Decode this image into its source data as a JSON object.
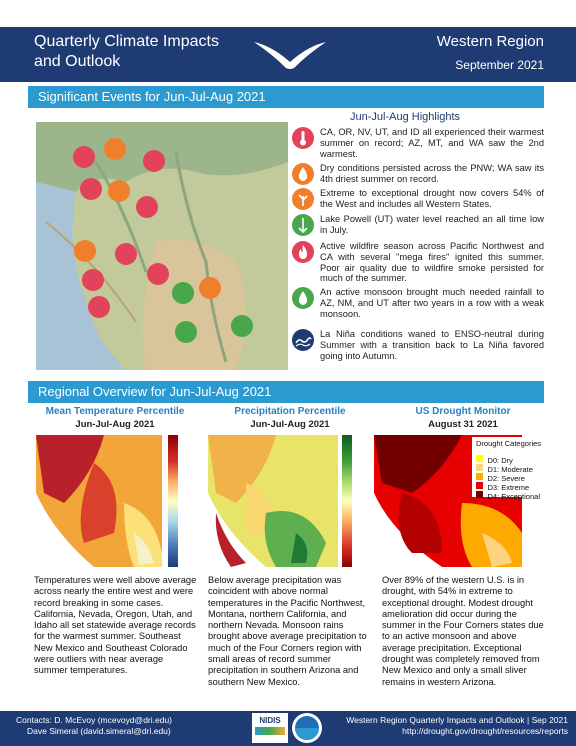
{
  "header": {
    "title_line1": "Quarterly Climate Impacts",
    "title_line2": "and Outlook",
    "region": "Western Region",
    "date": "September 2021"
  },
  "significant_events": {
    "section_title": "Significant Events for Jun-Jul-Aug 2021",
    "highlights_title": "Jun-Jul-Aug Highlights",
    "items": [
      {
        "icon": "thermometer-icon",
        "color": "#e2435a",
        "text": "CA, OR, NV, UT, and ID all experienced their warmest summer on record; AZ, MT, and WA saw the 2nd warmest."
      },
      {
        "icon": "dry-icon",
        "color": "#f07f2c",
        "text": "Dry conditions persisted across the PNW; WA saw its 4th driest summer on record."
      },
      {
        "icon": "drought-icon",
        "color": "#f07f2c",
        "text": "Extreme to exceptional drought now covers 54% of the West and includes all Western States."
      },
      {
        "icon": "water-level-icon",
        "color": "#4aa64a",
        "text": "Lake Powell (UT) water level reached an all time low in July."
      },
      {
        "icon": "fire-icon",
        "color": "#e2435a",
        "text": "Active wildfire season across Pacific Northwest and CA with several \"mega fires\" ignited this summer. Poor air quality due to wildfire smoke persisted for much of the summer."
      },
      {
        "icon": "rain-drop-icon",
        "color": "#4aa64a",
        "text": "An active monsoon brought much needed rainfall to AZ, NM, and UT after two years in a row with a weak monsoon."
      },
      {
        "icon": "wave-icon",
        "color": "#1f3b73",
        "text": "La Niña conditions waned to ENSO-neutral during Summer with a transition back to La Niña favored going into Autumn."
      }
    ]
  },
  "regional_overview": {
    "section_title": "Regional Overview for Jun-Jul-Aug 2021",
    "temperature": {
      "title": "Mean Temperature Percentile",
      "subtitle": "Jun-Jul-Aug 2021",
      "text": "Temperatures were well above average across nearly the entire west and were record breaking in some cases. California, Nevada, Oregon, Utah, and Idaho all set statewide average records for the warmest summer. Southeast New Mexico and Southeast Colorado were outliers with near average summer temperatures."
    },
    "precipitation": {
      "title": "Precipitation Percentile",
      "subtitle": "Jun-Jul-Aug 2021",
      "text": "Below average precipitation was coincident with above normal temperatures in the Pacific Northwest, Montana, northern California, and northern Nevada. Monsoon rains brought above average precipitation to much of the Four Corners region with small areas of record summer precipitation in southern Arizona and southern New Mexico."
    },
    "drought": {
      "title": "US Drought Monitor",
      "subtitle": "August 31 2021",
      "legend_title": "Drought Categories",
      "legend": [
        {
          "label": "D0: Dry",
          "color": "#ffff00"
        },
        {
          "label": "D1: Moderate",
          "color": "#fcd37f"
        },
        {
          "label": "D2: Severe",
          "color": "#ffaa00"
        },
        {
          "label": "D3: Extreme",
          "color": "#e60000"
        },
        {
          "label": "D4: Exceptional",
          "color": "#730000"
        }
      ],
      "text": "Over 89% of the western U.S. is in drought, with 54% in extreme to exceptional drought. Modest drought amelioration did occur during the summer in the Four Corners states due to an active monsoon and above average precipitation. Exceptional drought was completely removed from New Mexico and only a small sliver remains in western Arizona."
    }
  },
  "footer": {
    "contacts_line1": "Contacts: D. McEvoy (mcevoyd@dri.edu)",
    "contacts_line2": "Dave Simeral (david.simeral@dri.edu)",
    "logo_text": "NIDIS",
    "right_line1": "Western Region Quarterly Impacts and Outlook | Sep 2021",
    "right_line2": "http://drought.gov/drought/resources/reports"
  }
}
